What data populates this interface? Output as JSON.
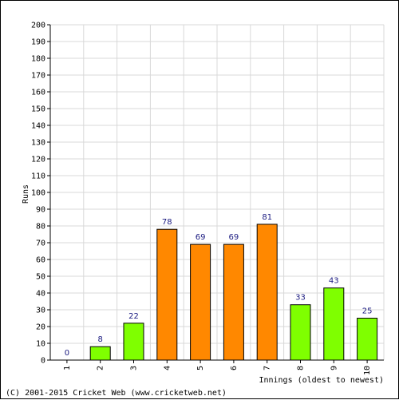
{
  "chart_data": {
    "type": "bar",
    "title": "",
    "xlabel": "Innings (oldest to newest)",
    "ylabel": "Runs",
    "ylim": [
      0,
      200
    ],
    "yticks": [
      0,
      10,
      20,
      30,
      40,
      50,
      60,
      70,
      80,
      90,
      100,
      110,
      120,
      130,
      140,
      150,
      160,
      170,
      180,
      190,
      200
    ],
    "categories": [
      "1",
      "2",
      "3",
      "4",
      "5",
      "6",
      "7",
      "8",
      "9",
      "10"
    ],
    "values": [
      0,
      8,
      22,
      78,
      69,
      69,
      81,
      33,
      43,
      25
    ],
    "data_labels": [
      "0",
      "8",
      "22",
      "78",
      "69",
      "69",
      "81",
      "33",
      "43",
      "25"
    ],
    "bar_colors": [
      "#7fff00",
      "#7fff00",
      "#7fff00",
      "#ff8800",
      "#ff8800",
      "#ff8800",
      "#ff8800",
      "#7fff00",
      "#7fff00",
      "#7fff00"
    ],
    "grid": true,
    "legend": false
  },
  "footer": {
    "copyright": "(C) 2001-2015 Cricket Web (www.cricketweb.net)"
  },
  "colors": {
    "grid": "#d8d8d8",
    "axis": "#000000",
    "bar_outline": "#000000",
    "data_label": "#1a1a80"
  }
}
